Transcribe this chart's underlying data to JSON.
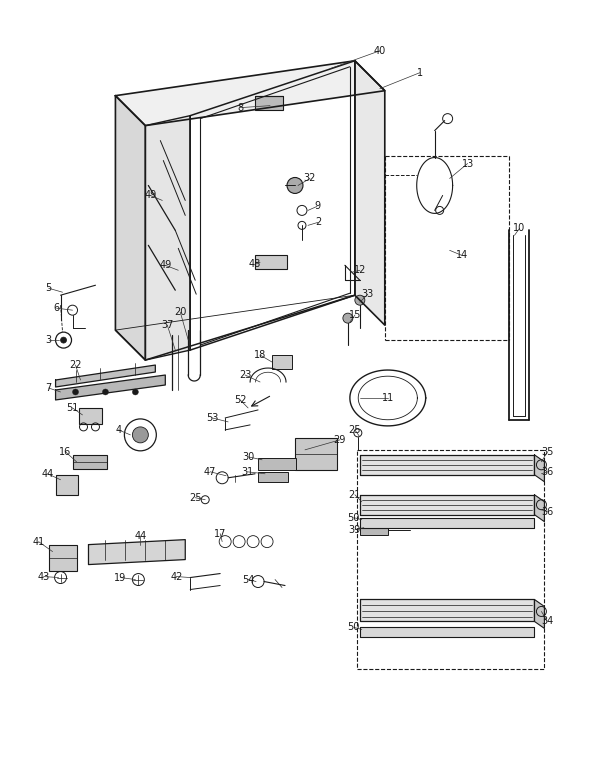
{
  "bg_color": "#ffffff",
  "line_color": "#1a1a1a",
  "label_fontsize": 7.0,
  "fig_width": 5.9,
  "fig_height": 7.65,
  "dpi": 100
}
